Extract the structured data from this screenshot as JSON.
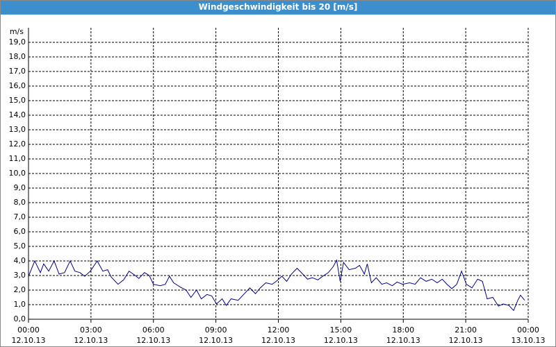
{
  "chart_data": {
    "type": "line",
    "title": "Windgeschwindigkeit bis 20 [m/s]",
    "y_label": "m/s",
    "xlim": [
      0,
      24
    ],
    "ylim": [
      0,
      20
    ],
    "grid": true,
    "xticks": [
      {
        "value": 0,
        "label": "00:00\n12.10.13"
      },
      {
        "value": 3,
        "label": "03:00\n12.10.13"
      },
      {
        "value": 6,
        "label": "06:00\n12.10.13"
      },
      {
        "value": 9,
        "label": "09:00\n12.10.13"
      },
      {
        "value": 12,
        "label": "12:00\n12.10.13"
      },
      {
        "value": 15,
        "label": "15:00\n12.10.13"
      },
      {
        "value": 18,
        "label": "18:00\n12.10.13"
      },
      {
        "value": 21,
        "label": "21:00\n12.10.13"
      },
      {
        "value": 24,
        "label": "00:00\n13.10.13"
      }
    ],
    "yticks": [
      {
        "value": 0,
        "label": "0,0"
      },
      {
        "value": 1,
        "label": "1,0"
      },
      {
        "value": 2,
        "label": "2,0"
      },
      {
        "value": 3,
        "label": "3,0"
      },
      {
        "value": 4,
        "label": "4,0"
      },
      {
        "value": 5,
        "label": "5,0"
      },
      {
        "value": 6,
        "label": "6,0"
      },
      {
        "value": 7,
        "label": "7,0"
      },
      {
        "value": 8,
        "label": "8,0"
      },
      {
        "value": 9,
        "label": "9,0"
      },
      {
        "value": 10,
        "label": "10,0"
      },
      {
        "value": 11,
        "label": "11,0"
      },
      {
        "value": 12,
        "label": "12,0"
      },
      {
        "value": 13,
        "label": "13,0"
      },
      {
        "value": 14,
        "label": "14,0"
      },
      {
        "value": 15,
        "label": "15,0"
      },
      {
        "value": 16,
        "label": "16,0"
      },
      {
        "value": 17,
        "label": "17,0"
      },
      {
        "value": 18,
        "label": "18,0"
      },
      {
        "value": 19,
        "label": "19,0"
      }
    ],
    "x": [
      0,
      0.3,
      0.57,
      0.73,
      0.97,
      1.23,
      1.47,
      1.73,
      2.0,
      2.23,
      2.47,
      2.7,
      2.97,
      3.3,
      3.57,
      3.8,
      3.97,
      4.3,
      4.57,
      4.83,
      5.13,
      5.3,
      5.57,
      5.8,
      6.0,
      6.33,
      6.57,
      6.77,
      6.97,
      7.3,
      7.57,
      7.8,
      8.07,
      8.3,
      8.57,
      8.8,
      9.03,
      9.3,
      9.5,
      9.73,
      10.07,
      10.4,
      10.63,
      10.9,
      11.13,
      11.4,
      11.7,
      11.9,
      12.17,
      12.4,
      12.63,
      12.9,
      13.17,
      13.4,
      13.63,
      13.9,
      14.13,
      14.4,
      14.63,
      14.8,
      14.97,
      15.13,
      15.4,
      15.7,
      15.9,
      16.13,
      16.27,
      16.47,
      16.7,
      16.97,
      17.2,
      17.47,
      17.7,
      17.97,
      18.3,
      18.57,
      18.83,
      19.1,
      19.37,
      19.63,
      19.87,
      20.1,
      20.33,
      20.57,
      20.8,
      21.03,
      21.3,
      21.57,
      21.8,
      22.03,
      22.3,
      22.57,
      22.8,
      23.07,
      23.3,
      23.5,
      23.63,
      23.83
    ],
    "series": [
      {
        "color": "#00008b",
        "values": [
          2.95,
          4.0,
          3.2,
          3.8,
          3.3,
          4.0,
          3.1,
          3.2,
          4.0,
          3.3,
          3.2,
          2.95,
          3.3,
          4.0,
          3.3,
          3.4,
          2.9,
          2.4,
          2.7,
          3.3,
          3.0,
          2.8,
          3.2,
          3.0,
          2.4,
          2.3,
          2.4,
          2.95,
          2.5,
          2.2,
          2.0,
          1.5,
          2.0,
          1.4,
          1.7,
          1.6,
          1.05,
          1.4,
          0.95,
          1.4,
          1.3,
          1.8,
          2.15,
          1.75,
          2.15,
          2.5,
          2.4,
          2.6,
          2.95,
          2.6,
          3.1,
          3.5,
          3.1,
          2.75,
          2.85,
          2.7,
          2.95,
          3.2,
          3.6,
          4.05,
          2.6,
          3.9,
          3.4,
          3.5,
          3.7,
          3.1,
          3.8,
          2.5,
          2.85,
          2.4,
          2.5,
          2.3,
          2.55,
          2.4,
          2.5,
          2.4,
          2.85,
          2.6,
          2.75,
          2.5,
          2.75,
          2.4,
          2.1,
          2.4,
          3.3,
          2.4,
          2.15,
          2.75,
          2.6,
          1.4,
          1.5,
          0.9,
          1.05,
          0.95,
          0.6,
          1.3,
          1.65,
          1.3
        ]
      }
    ]
  }
}
